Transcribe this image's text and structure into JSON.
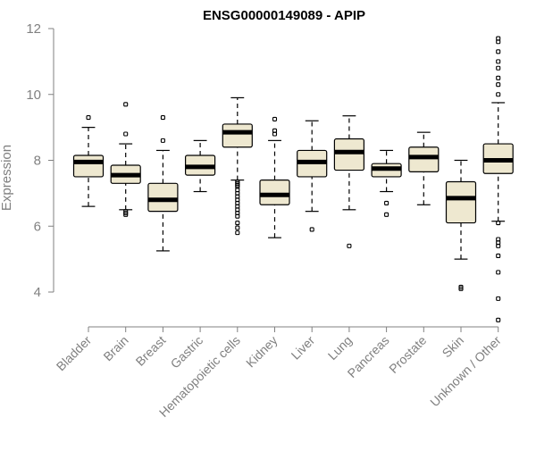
{
  "chart_data": {
    "type": "boxplot",
    "title": "ENSG00000149089 - APIP",
    "xlabel": "",
    "ylabel": "Expression",
    "ylim": [
      3,
      12
    ],
    "yticks": [
      4,
      6,
      8,
      10,
      12
    ],
    "grid": false,
    "legend": "none",
    "box_color": "#eee8d0",
    "categories": [
      "Bladder",
      "Brain",
      "Breast",
      "Gastric",
      "Hematopoietic cells",
      "Kidney",
      "Liver",
      "Lung",
      "Pancreas",
      "Prostate",
      "Skin",
      "Unknown / Other"
    ],
    "boxes": [
      {
        "whisker_low": 6.6,
        "q1": 7.5,
        "median": 7.95,
        "q3": 8.15,
        "whisker_high": 9.0,
        "outliers": [
          9.3
        ]
      },
      {
        "whisker_low": 6.5,
        "q1": 7.3,
        "median": 7.55,
        "q3": 7.85,
        "whisker_high": 8.5,
        "outliers": [
          9.7,
          8.8,
          6.45,
          6.4,
          6.35
        ]
      },
      {
        "whisker_low": 5.25,
        "q1": 6.45,
        "median": 6.8,
        "q3": 7.3,
        "whisker_high": 8.3,
        "outliers": [
          9.3,
          8.6
        ]
      },
      {
        "whisker_low": 7.05,
        "q1": 7.55,
        "median": 7.8,
        "q3": 8.15,
        "whisker_high": 8.6,
        "outliers": []
      },
      {
        "whisker_low": 7.4,
        "q1": 8.4,
        "median": 8.85,
        "q3": 9.1,
        "whisker_high": 9.9,
        "outliers": [
          7.35,
          7.3,
          7.25,
          7.2,
          7.1,
          7.0,
          6.9,
          6.8,
          6.7,
          6.6,
          6.5,
          6.4,
          6.3,
          6.1,
          5.95,
          5.8
        ]
      },
      {
        "whisker_low": 5.65,
        "q1": 6.65,
        "median": 6.95,
        "q3": 7.4,
        "whisker_high": 8.6,
        "outliers": [
          9.25,
          8.9,
          8.8
        ]
      },
      {
        "whisker_low": 6.45,
        "q1": 7.5,
        "median": 7.95,
        "q3": 8.3,
        "whisker_high": 9.2,
        "outliers": [
          5.9
        ]
      },
      {
        "whisker_low": 6.5,
        "q1": 7.7,
        "median": 8.25,
        "q3": 8.65,
        "whisker_high": 9.35,
        "outliers": [
          5.4
        ]
      },
      {
        "whisker_low": 7.05,
        "q1": 7.5,
        "median": 7.75,
        "q3": 7.9,
        "whisker_high": 8.3,
        "outliers": [
          6.7,
          6.35
        ]
      },
      {
        "whisker_low": 6.65,
        "q1": 7.65,
        "median": 8.1,
        "q3": 8.4,
        "whisker_high": 8.85,
        "outliers": []
      },
      {
        "whisker_low": 5.0,
        "q1": 6.1,
        "median": 6.85,
        "q3": 7.35,
        "whisker_high": 8.0,
        "outliers": [
          4.15,
          4.1
        ]
      },
      {
        "whisker_low": 6.15,
        "q1": 7.6,
        "median": 8.0,
        "q3": 8.5,
        "whisker_high": 9.75,
        "outliers": [
          11.7,
          11.6,
          11.3,
          11.0,
          10.8,
          10.5,
          10.3,
          10.0,
          6.1,
          5.6,
          5.5,
          5.4,
          5.1,
          4.6,
          3.8,
          3.15
        ]
      }
    ]
  }
}
